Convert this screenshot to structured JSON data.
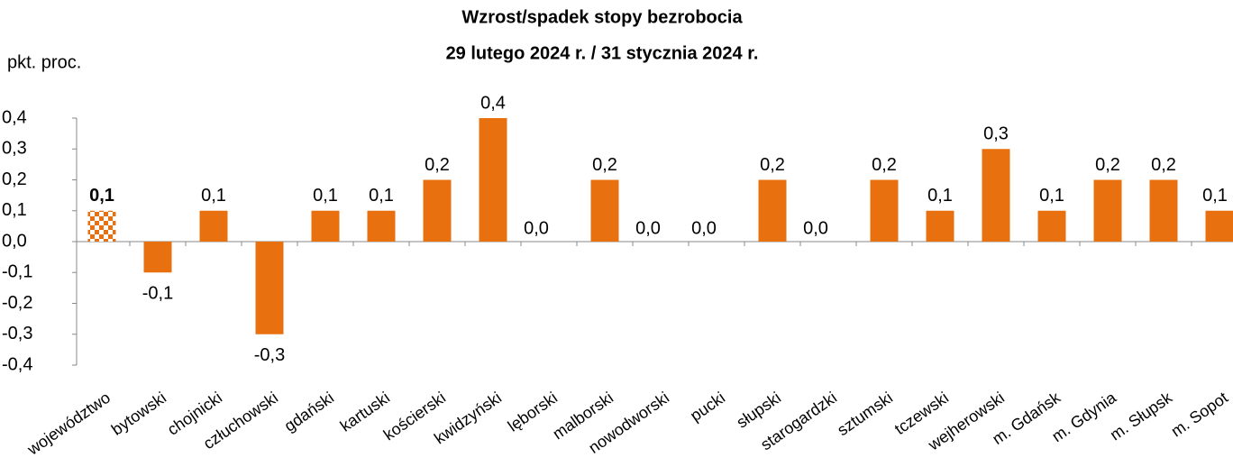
{
  "chart_data": {
    "type": "bar",
    "title": "Wzrost/spadek stopy bezrobocia",
    "subtitle": "29 lutego 2024 r. / 31 stycznia 2024 r.",
    "y_label": "pkt. proc.",
    "categories": [
      "województwo",
      "bytowski",
      "chojnicki",
      "człuchowski",
      "gdański",
      "kartuski",
      "kościerski",
      "kwidzyński",
      "lęborski",
      "malborski",
      "nowodworski",
      "pucki",
      "słupski",
      "starogardzki",
      "sztumski",
      "tczewski",
      "wejherowski",
      "m. Gdańsk",
      "m. Gdynia",
      "m. Słupsk",
      "m. Sopot"
    ],
    "values": [
      0.1,
      -0.1,
      0.1,
      -0.3,
      0.1,
      0.1,
      0.2,
      0.4,
      0.0,
      0.2,
      0.0,
      0.0,
      0.2,
      0.0,
      0.2,
      0.1,
      0.3,
      0.1,
      0.2,
      0.2,
      0.1
    ],
    "value_labels": [
      "0,1",
      "-0,1",
      "0,1",
      "-0,3",
      "0,1",
      "0,1",
      "0,2",
      "0,4",
      "0,0",
      "0,2",
      "0,0",
      "0,0",
      "0,2",
      "0,0",
      "0,2",
      "0,1",
      "0,3",
      "0,1",
      "0,2",
      "0,2",
      "0,1"
    ],
    "color": "#e8700e",
    "ylim": [
      -0.4,
      0.4
    ],
    "yticks": [
      {
        "value": -0.4,
        "label": "-0,4"
      },
      {
        "value": -0.3,
        "label": "-0,3"
      },
      {
        "value": -0.2,
        "label": "-0,2"
      },
      {
        "value": -0.1,
        "label": "-0,1"
      },
      {
        "value": 0.0,
        "label": "0,0"
      },
      {
        "value": 0.1,
        "label": "0,1"
      },
      {
        "value": 0.2,
        "label": "0,2"
      },
      {
        "value": 0.3,
        "label": "0,3"
      },
      {
        "value": 0.4,
        "label": "0,4"
      }
    ],
    "grid": false
  }
}
